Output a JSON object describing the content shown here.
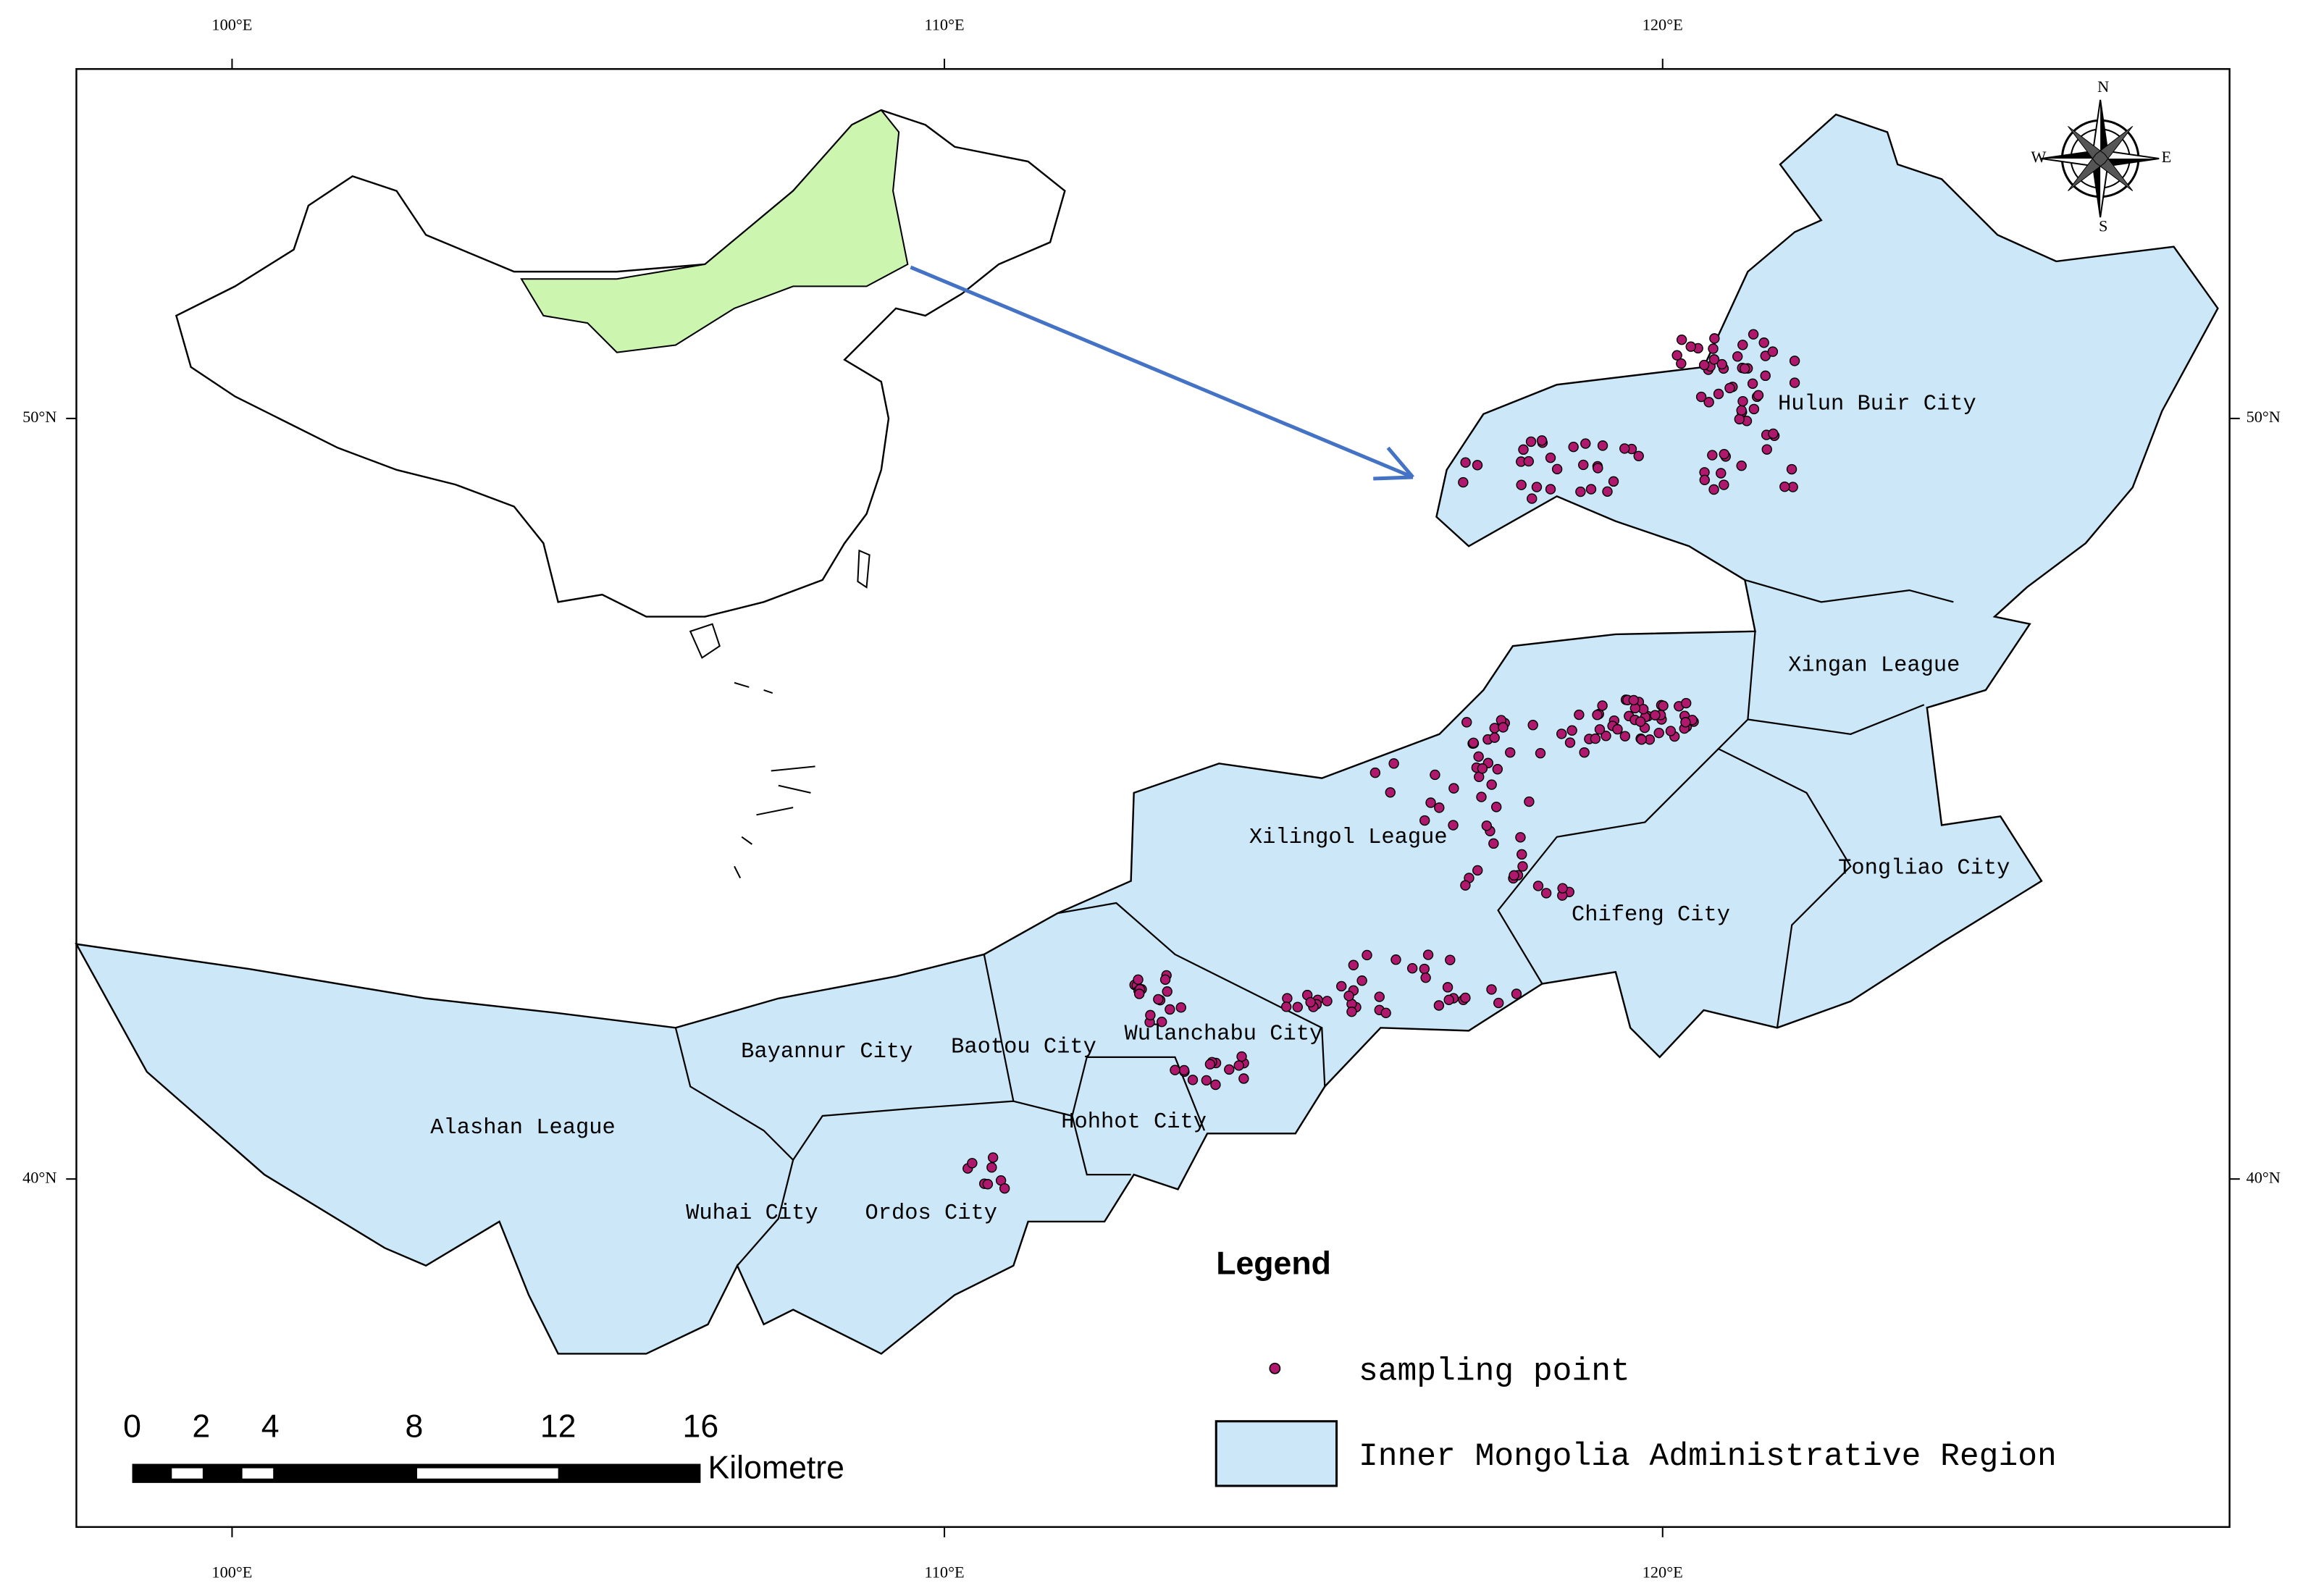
{
  "map": {
    "top_ticks": [
      "100°E",
      "110°E",
      "120°E"
    ],
    "bottom_ticks": [
      "100°E",
      "110°E",
      "120°E"
    ],
    "left_ticks": [
      "50°N",
      "40°N"
    ],
    "right_ticks": [
      "50°N",
      "40°N"
    ],
    "regions": [
      "Hulun Buir City",
      "Xingan League",
      "Xilingol League",
      "Tongliao City",
      "Chifeng City",
      "Wulanchabu City",
      "Baotou City",
      "Bayannur City",
      "Hohhot City",
      "Alashan League",
      "Wuhai City",
      "Ordos City"
    ],
    "compass": {
      "n": "N",
      "s": "S",
      "e": "E",
      "w": "W"
    }
  },
  "legend": {
    "title": "Legend",
    "items": [
      "sampling point",
      "Inner Mongolia Administrative Region"
    ]
  },
  "scale_bar": {
    "labels": [
      "0",
      "2",
      "4",
      "8",
      "12",
      "16"
    ],
    "unit": "Kilometre"
  }
}
